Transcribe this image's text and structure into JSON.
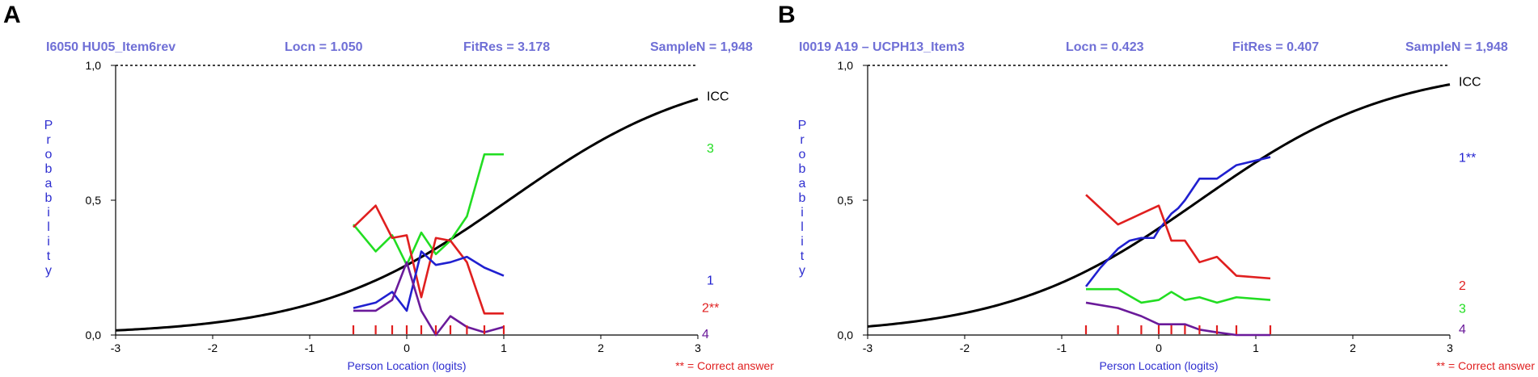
{
  "chart_data": [
    {
      "type": "line",
      "panel": "A",
      "header": {
        "item": "I6050 HU05_Item6rev",
        "locn": "Locn = 1.050",
        "fitres": "FitRes = 3.178",
        "samplen": "SampleN = 1,948"
      },
      "xlabel": "Person Location (logits)",
      "ylabel": "Probability",
      "xlim": [
        -3,
        3
      ],
      "ylim": [
        0,
        1
      ],
      "x_ticks": [
        "-3",
        "-2",
        "-1",
        "0",
        "1",
        "2",
        "3"
      ],
      "y_ticks": [
        "0,0",
        "0,5",
        "1,0"
      ],
      "note": "** = Correct answer",
      "grid": false,
      "color_icc": "#000000",
      "icc": {
        "name": "ICC",
        "location": 1.05
      },
      "class_intervals": [
        -0.55,
        -0.32,
        -0.15,
        0.0,
        0.15,
        0.3,
        0.45,
        0.62,
        0.8,
        1.0
      ],
      "series": [
        {
          "name": "3",
          "color": "#22dd22",
          "x": [
            -0.55,
            -0.32,
            -0.15,
            0.0,
            0.15,
            0.3,
            0.45,
            0.62,
            0.8,
            1.0
          ],
          "y": [
            0.41,
            0.31,
            0.37,
            0.26,
            0.38,
            0.3,
            0.35,
            0.44,
            0.67,
            0.67
          ]
        },
        {
          "name": "2**",
          "color": "#e01f1f",
          "x": [
            -0.55,
            -0.32,
            -0.15,
            0.0,
            0.15,
            0.3,
            0.45,
            0.62,
            0.8,
            1.0
          ],
          "y": [
            0.4,
            0.48,
            0.36,
            0.37,
            0.14,
            0.36,
            0.35,
            0.27,
            0.08,
            0.08
          ]
        },
        {
          "name": "1",
          "color": "#2020d0",
          "x": [
            -0.55,
            -0.32,
            -0.15,
            0.0,
            0.15,
            0.3,
            0.45,
            0.62,
            0.8,
            1.0
          ],
          "y": [
            0.1,
            0.12,
            0.16,
            0.09,
            0.31,
            0.26,
            0.27,
            0.29,
            0.25,
            0.22
          ]
        },
        {
          "name": "4",
          "color": "#6a1a9a",
          "x": [
            -0.55,
            -0.32,
            -0.15,
            0.0,
            0.15,
            0.3,
            0.45,
            0.62,
            0.8,
            1.0
          ],
          "y": [
            0.09,
            0.09,
            0.13,
            0.27,
            0.09,
            0.0,
            0.07,
            0.03,
            0.01,
            0.03
          ]
        }
      ]
    },
    {
      "type": "line",
      "panel": "B",
      "header": {
        "item": "I0019 A19 – UCPH13_Item3",
        "locn": "Locn = 0.423",
        "fitres": "FitRes = 0.407",
        "samplen": "SampleN = 1,948"
      },
      "xlabel": "Person Location (logits)",
      "ylabel": "Probability",
      "xlim": [
        -3,
        3
      ],
      "ylim": [
        0,
        1
      ],
      "x_ticks": [
        "-3",
        "-2",
        "-1",
        "0",
        "1",
        "2",
        "3"
      ],
      "y_ticks": [
        "0,0",
        "0,5",
        "1,0"
      ],
      "note": "** = Correct answer",
      "grid": false,
      "color_icc": "#000000",
      "icc": {
        "name": "ICC",
        "location": 0.423
      },
      "class_intervals": [
        -0.75,
        -0.42,
        -0.18,
        0.0,
        0.13,
        0.27,
        0.42,
        0.6,
        0.8,
        1.15
      ],
      "series": [
        {
          "name": "1**",
          "color": "#2020d0",
          "x": [
            -0.75,
            -0.6,
            -0.42,
            -0.3,
            -0.18,
            -0.05,
            0.0,
            0.13,
            0.2,
            0.27,
            0.42,
            0.6,
            0.8,
            1.15
          ],
          "y": [
            0.18,
            0.25,
            0.32,
            0.35,
            0.36,
            0.36,
            0.39,
            0.45,
            0.47,
            0.5,
            0.58,
            0.58,
            0.63,
            0.66
          ]
        },
        {
          "name": "2",
          "color": "#e01f1f",
          "x": [
            -0.75,
            -0.42,
            -0.18,
            0.0,
            0.13,
            0.27,
            0.42,
            0.6,
            0.8,
            1.15
          ],
          "y": [
            0.52,
            0.41,
            0.45,
            0.48,
            0.35,
            0.35,
            0.27,
            0.29,
            0.22,
            0.21
          ]
        },
        {
          "name": "3",
          "color": "#22dd22",
          "x": [
            -0.75,
            -0.42,
            -0.18,
            0.0,
            0.13,
            0.27,
            0.42,
            0.6,
            0.8,
            1.15
          ],
          "y": [
            0.17,
            0.17,
            0.12,
            0.13,
            0.16,
            0.13,
            0.14,
            0.12,
            0.14,
            0.13
          ]
        },
        {
          "name": "4",
          "color": "#6a1a9a",
          "x": [
            -0.75,
            -0.42,
            -0.18,
            0.0,
            0.13,
            0.27,
            0.42,
            0.6,
            0.8,
            1.15
          ],
          "y": [
            0.12,
            0.1,
            0.07,
            0.04,
            0.04,
            0.04,
            0.02,
            0.01,
            0.0,
            0.0
          ]
        }
      ]
    }
  ]
}
